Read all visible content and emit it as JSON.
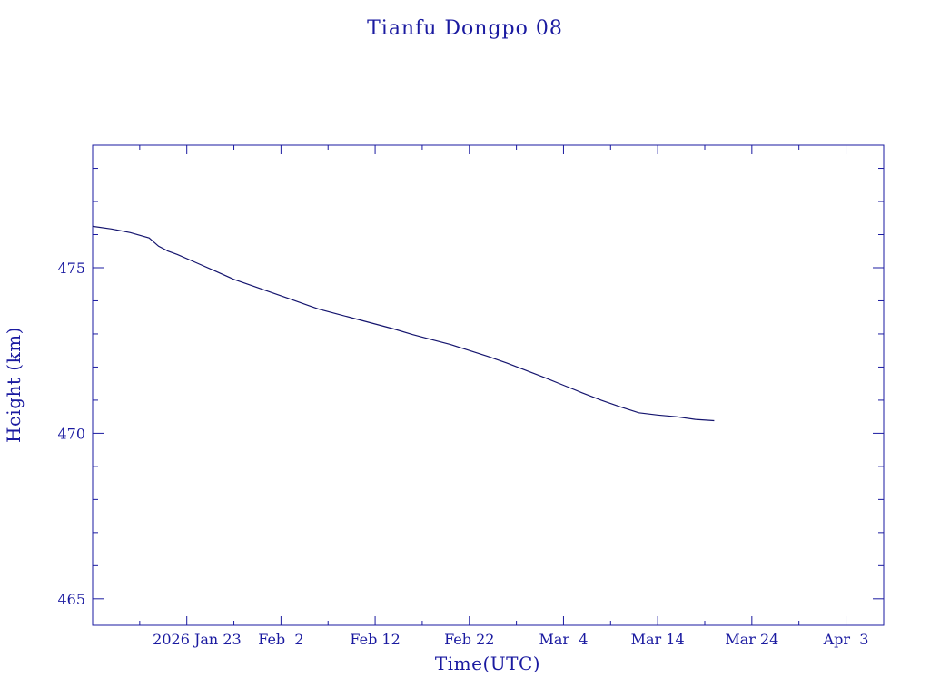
{
  "chart_data": {
    "type": "line",
    "title": "Tianfu Dongpo 08",
    "xlabel": "Time(UTC)",
    "ylabel": "Height (km)",
    "x_tick_labels": [
      "2026 Jan 23",
      "Feb  2",
      "Feb 12",
      "Feb 22",
      "Mar  4",
      "Mar 14",
      "Mar 24",
      "Apr  3"
    ],
    "y_tick_labels": [
      "465",
      "470",
      "475"
    ],
    "y_ticks": [
      465,
      470,
      475
    ],
    "xlim": [
      "2026-01-13",
      "2026-04-07"
    ],
    "ylim": [
      464.2,
      478.7
    ],
    "grid": false,
    "colors": {
      "axis": "#1a1aa0",
      "line": "#14146e"
    },
    "series": [
      {
        "x": [
          "2026-01-13",
          "2026-01-15",
          "2026-01-17",
          "2026-01-19",
          "2026-01-20",
          "2026-01-21",
          "2026-01-22",
          "2026-01-24",
          "2026-01-26",
          "2026-01-28",
          "2026-01-30",
          "2026-02-01",
          "2026-02-03",
          "2026-02-05",
          "2026-02-06",
          "2026-02-08",
          "2026-02-10",
          "2026-02-12",
          "2026-02-14",
          "2026-02-16",
          "2026-02-18",
          "2026-02-20",
          "2026-02-22",
          "2026-02-24",
          "2026-02-26",
          "2026-02-28",
          "2026-03-02",
          "2026-03-04",
          "2026-03-06",
          "2026-03-08",
          "2026-03-10",
          "2026-03-12",
          "2026-03-14",
          "2026-03-16",
          "2026-03-18",
          "2026-03-20"
        ],
        "y": [
          476.25,
          476.17,
          476.06,
          475.9,
          475.65,
          475.5,
          475.4,
          475.15,
          474.9,
          474.65,
          474.45,
          474.25,
          474.05,
          473.85,
          473.75,
          473.6,
          473.45,
          473.3,
          473.15,
          472.98,
          472.83,
          472.68,
          472.5,
          472.32,
          472.12,
          471.9,
          471.68,
          471.45,
          471.22,
          471.0,
          470.8,
          470.62,
          470.55,
          470.5,
          470.42,
          470.38
        ]
      }
    ]
  }
}
